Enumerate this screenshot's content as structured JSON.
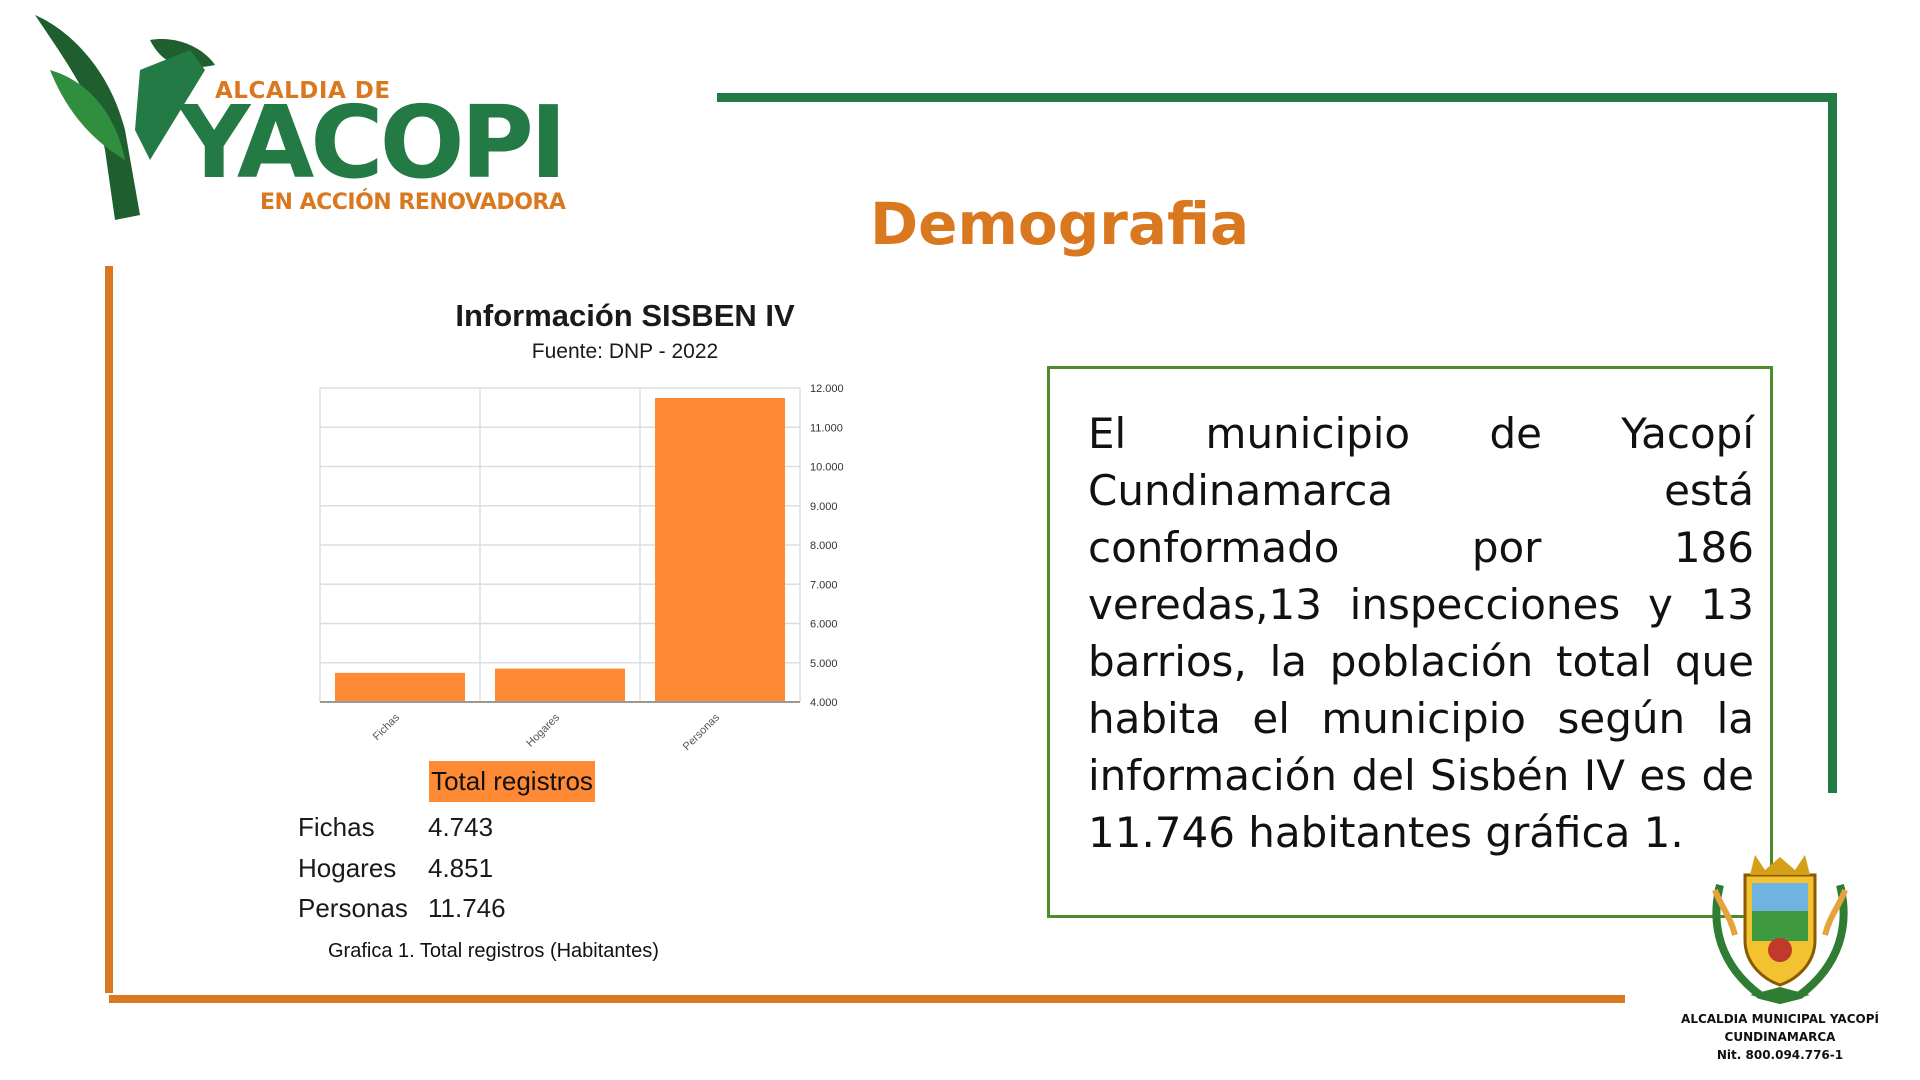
{
  "logo": {
    "top_text": "ALCALDIA DE",
    "main_text": "YACOPI",
    "bottom_text": "EN ACCIÓN RENOVADORA"
  },
  "section_title": "Demografia",
  "colors": {
    "green": "#237a45",
    "orange": "#d9781f",
    "bar": "#ff8a35"
  },
  "chart_data": {
    "type": "bar",
    "title": "Información SISBEN IV",
    "subtitle": "Fuente: DNP - 2022",
    "categories": [
      "Fichas",
      "Hogares",
      "Personas"
    ],
    "values": [
      4743,
      4851,
      11746
    ],
    "ylim": [
      4000,
      12000
    ],
    "yticks": [
      "4.000",
      "5.000",
      "6.000",
      "7.000",
      "8.000",
      "9.000",
      "10.000",
      "11.000",
      "12.000"
    ],
    "grid": true,
    "y_axis_side": "right"
  },
  "table": {
    "header": "Total registros",
    "rows": [
      {
        "label": "Fichas",
        "value": "4.743"
      },
      {
        "label": "Hogares",
        "value": "4.851"
      },
      {
        "label": "Personas",
        "value": "11.746"
      }
    ]
  },
  "caption": "Grafica 1. Total registros (Habitantes)",
  "description": "El municipio de Yacopí Cundinamarca está conformado por 186 veredas,13 inspecciones y 13 barrios, la población total que habita el municipio según la información del Sisbén IV es de 11.746 habitantes gráfica 1.",
  "seal": {
    "line1": "ALCALDIA MUNICIPAL YACOPÍ",
    "line2": "CUNDINAMARCA",
    "line3": "Nit. 800.094.776-1"
  }
}
